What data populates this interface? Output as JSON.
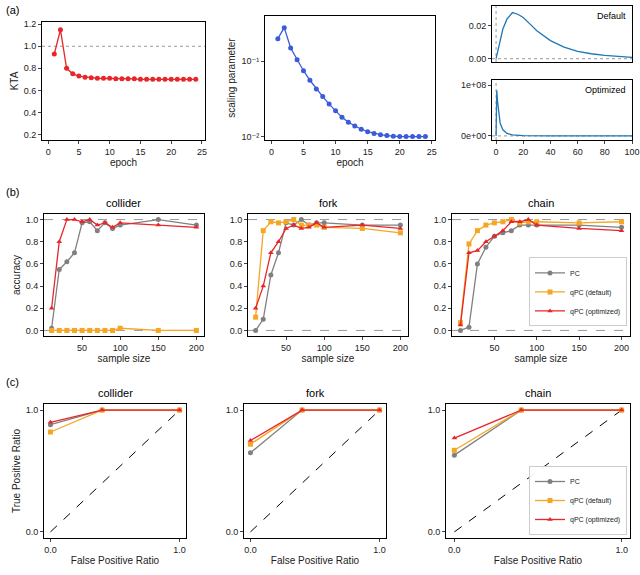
{
  "chart_data": [
    {
      "type": "line",
      "panel_label": "(a)",
      "x_label": "epoch",
      "y_label": "KTA",
      "x": [
        1,
        2,
        3,
        4,
        5,
        6,
        7,
        8,
        9,
        10,
        11,
        12,
        13,
        14,
        15,
        16,
        17,
        18,
        19,
        20,
        21,
        22,
        23,
        24
      ],
      "series": [
        {
          "color": "#e8262a",
          "marker": "circle",
          "values": [
            0.93,
            1.15,
            0.8,
            0.75,
            0.73,
            0.72,
            0.715,
            0.71,
            0.71,
            0.71,
            0.705,
            0.705,
            0.705,
            0.705,
            0.7,
            0.7,
            0.7,
            0.7,
            0.7,
            0.7,
            0.7,
            0.7,
            0.7,
            0.7
          ]
        }
      ],
      "xlim": [
        -1,
        25.5
      ],
      "xticks": [
        0,
        5,
        10,
        15,
        20,
        25
      ],
      "ylim": [
        0.15,
        1.22
      ],
      "yticks": [
        0.2,
        0.4,
        0.6,
        0.8,
        {
          "value": 1,
          "label": "1.0"
        },
        1.2
      ],
      "reference_lines": [
        {
          "axis": "y",
          "value": 1,
          "line_style": "dotted"
        }
      ],
      "grid": false
    },
    {
      "type": "line",
      "x_label": "epoch",
      "y_label": "scaling parameter",
      "log": "y",
      "x": [
        1,
        2,
        3,
        4,
        5,
        6,
        7,
        8,
        9,
        10,
        11,
        12,
        13,
        14,
        15,
        16,
        17,
        18,
        19,
        20,
        21,
        22,
        23,
        24
      ],
      "series": [
        {
          "color": "#3b5bdb",
          "marker": "circle",
          "values": [
            0.2,
            0.28,
            0.15,
            0.105,
            0.075,
            0.056,
            0.043,
            0.034,
            0.027,
            0.022,
            0.018,
            0.0155,
            0.0138,
            0.0125,
            0.0116,
            0.011,
            0.0106,
            0.0103,
            0.0101,
            0.01,
            0.01,
            0.01,
            0.01,
            0.01
          ]
        }
      ],
      "xlim": [
        -1,
        25.5
      ],
      "xticks": [
        0,
        5,
        10,
        15,
        20,
        25
      ],
      "ylim": [
        0.009,
        0.4
      ],
      "yticks": [
        {
          "value": 0.1,
          "label": "10⁻¹"
        },
        {
          "value": 0.01,
          "label": "10⁻²"
        }
      ],
      "grid": false
    },
    {
      "type": "line",
      "annotations": [
        "Default"
      ],
      "x": [
        0,
        2,
        5,
        8,
        12,
        16,
        20,
        25,
        30,
        40,
        50,
        60,
        70,
        80,
        90,
        100
      ],
      "series": [
        {
          "color": "#1f77b4",
          "marker": "none",
          "values": [
            0,
            0.008,
            0.018,
            0.024,
            0.028,
            0.027,
            0.025,
            0.021,
            0.017,
            0.011,
            0.007,
            0.0045,
            0.003,
            0.002,
            0.0013,
            0.0008
          ]
        }
      ],
      "xlim": [
        -3,
        100
      ],
      "ylim": [
        -0.002,
        0.032
      ],
      "yticks": [
        {
          "value": 0,
          "label": "0.00"
        },
        {
          "value": 0.02,
          "label": "0.02"
        }
      ],
      "reference_lines": [
        {
          "axis": "y",
          "value": 0,
          "line_style": "dotted"
        },
        {
          "axis": "x",
          "value": 0,
          "line_style": "dotted"
        }
      ],
      "grid": false
    },
    {
      "type": "line",
      "annotations": [
        "Optimized"
      ],
      "x": [
        0,
        0.5,
        1,
        2,
        3,
        5,
        8,
        12,
        20,
        40,
        100
      ],
      "series": [
        {
          "color": "#1f77b4",
          "marker": "none",
          "values": [
            0,
            90000000,
            70000000,
            40000000,
            25000000,
            12000000,
            5000000,
            2000000,
            500000,
            0,
            0
          ]
        }
      ],
      "xlim": [
        -3,
        100
      ],
      "xticks": [
        0,
        20,
        40,
        60,
        80,
        100
      ],
      "ylim": [
        -8000000,
        110000000
      ],
      "yticks": [
        {
          "value": 0,
          "label": "0e+00"
        },
        {
          "value": 100000000,
          "label": "1e+08"
        }
      ],
      "reference_lines": [
        {
          "axis": "y",
          "value": 0,
          "line_style": "dotted"
        },
        {
          "axis": "x",
          "value": 0,
          "line_style": "dotted"
        }
      ],
      "grid": false
    },
    {
      "type": "line",
      "panel_label": "(b)",
      "title": "collider",
      "x_label": "sample size",
      "y_label": "accuracy",
      "x": [
        10,
        20,
        30,
        40,
        50,
        60,
        70,
        80,
        90,
        100,
        150,
        200
      ],
      "series": [
        {
          "name": "PC",
          "color": "#808080",
          "marker": "circle",
          "values": [
            0.02,
            0.55,
            0.62,
            0.7,
            0.97,
            0.98,
            0.9,
            0.97,
            0.92,
            0.95,
            1.0,
            0.95
          ]
        },
        {
          "name": "qPC (default)",
          "color": "#f5a623",
          "marker": "square",
          "values": [
            0,
            0,
            0,
            0,
            0,
            0,
            0,
            0,
            0,
            0.02,
            0,
            0
          ]
        },
        {
          "name": "qPC (optimized)",
          "color": "#e8262a",
          "marker": "triangle-up",
          "values": [
            0.2,
            0.8,
            1.0,
            1.0,
            0.98,
            1.0,
            0.95,
            0.97,
            0.93,
            0.97,
            0.95,
            0.93
          ]
        }
      ],
      "xlim": [
        0,
        210
      ],
      "xticks": [
        50,
        100,
        150,
        200
      ],
      "ylim": [
        -0.05,
        1.05
      ],
      "yticks": [
        {
          "value": 0,
          "label": "0.0"
        },
        0.2,
        0.4,
        0.6,
        0.8,
        {
          "value": 1,
          "label": "1.0"
        }
      ],
      "reference_lines": [
        {
          "axis": "y",
          "value": 0,
          "line_style": "dashed"
        },
        {
          "axis": "y",
          "value": 1,
          "line_style": "dashed"
        }
      ],
      "grid": false
    },
    {
      "type": "line",
      "title": "fork",
      "x_label": "sample size",
      "x": [
        10,
        20,
        30,
        40,
        50,
        60,
        70,
        80,
        90,
        100,
        150,
        200
      ],
      "series": [
        {
          "name": "PC",
          "color": "#808080",
          "marker": "circle",
          "values": [
            0,
            0.1,
            0.5,
            0.7,
            0.97,
            0.95,
            1.0,
            0.95,
            0.97,
            0.97,
            0.95,
            0.95
          ]
        },
        {
          "name": "qPC (default)",
          "color": "#f5a623",
          "marker": "square",
          "values": [
            0.12,
            0.9,
            0.98,
            0.97,
            0.98,
            1.0,
            0.95,
            0.95,
            0.95,
            0.93,
            0.92,
            0.88
          ]
        },
        {
          "name": "qPC (optimized)",
          "color": "#e8262a",
          "marker": "triangle-up",
          "values": [
            0.2,
            0.4,
            0.7,
            0.8,
            0.92,
            0.95,
            0.92,
            0.93,
            0.97,
            0.93,
            0.95,
            0.92
          ]
        }
      ],
      "xlim": [
        0,
        210
      ],
      "xticks": [
        50,
        100,
        150,
        200
      ],
      "ylim": [
        -0.05,
        1.05
      ],
      "yticks": [
        {
          "value": 0,
          "label": "0.0"
        },
        0.2,
        0.4,
        0.6,
        0.8,
        {
          "value": 1,
          "label": "1.0"
        }
      ],
      "reference_lines": [
        {
          "axis": "y",
          "value": 0,
          "line_style": "dashed"
        },
        {
          "axis": "y",
          "value": 1,
          "line_style": "dashed"
        }
      ],
      "grid": false
    },
    {
      "type": "line",
      "title": "chain",
      "x_label": "sample size",
      "legend": "lower right",
      "x": [
        10,
        20,
        30,
        40,
        50,
        60,
        70,
        80,
        90,
        100,
        150,
        200
      ],
      "series": [
        {
          "name": "PC",
          "color": "#808080",
          "marker": "circle",
          "values": [
            0,
            0.03,
            0.6,
            0.75,
            0.85,
            0.88,
            0.9,
            0.95,
            0.95,
            0.95,
            0.95,
            0.93
          ]
        },
        {
          "name": "qPC (default)",
          "color": "#f5a623",
          "marker": "square",
          "values": [
            0.07,
            0.78,
            0.9,
            0.95,
            0.97,
            0.98,
            1.0,
            0.97,
            0.98,
            0.98,
            0.97,
            0.98
          ]
        },
        {
          "name": "qPC (optimized)",
          "color": "#e8262a",
          "marker": "triangle-up",
          "values": [
            0.05,
            0.7,
            0.72,
            0.8,
            0.85,
            0.9,
            0.98,
            0.98,
            1.0,
            0.95,
            0.92,
            0.9
          ]
        }
      ],
      "xlim": [
        0,
        210
      ],
      "xticks": [
        50,
        100,
        150,
        200
      ],
      "ylim": [
        -0.05,
        1.05
      ],
      "yticks": [
        {
          "value": 0,
          "label": "0.0"
        },
        0.2,
        0.4,
        0.6,
        0.8,
        {
          "value": 1,
          "label": "1.0"
        }
      ],
      "reference_lines": [
        {
          "axis": "y",
          "value": 0,
          "line_style": "dashed"
        },
        {
          "axis": "y",
          "value": 1,
          "line_style": "dashed"
        }
      ],
      "grid": false
    },
    {
      "type": "line",
      "panel_label": "(c)",
      "title": "collider",
      "x_label": "False Positive Ratio",
      "y_label": "True Positive Ratio",
      "x": [
        0,
        0.4,
        1
      ],
      "series": [
        {
          "name": "PC",
          "color": "#808080",
          "marker": "circle",
          "values": [
            0.88,
            1,
            1
          ]
        },
        {
          "name": "qPC (default)",
          "color": "#f5a623",
          "marker": "square",
          "values": [
            0.82,
            1,
            1
          ]
        },
        {
          "name": "qPC (optimized)",
          "color": "#e8262a",
          "marker": "triangle-up",
          "values": [
            0.9,
            1,
            1
          ]
        }
      ],
      "xlim": [
        -0.05,
        1.05
      ],
      "xticks": [
        {
          "value": 0,
          "label": "0.0"
        },
        {
          "value": 1,
          "label": "1.0"
        }
      ],
      "ylim": [
        -0.05,
        1.05
      ],
      "yticks": [
        {
          "value": 0,
          "label": "0.0"
        },
        {
          "value": 1,
          "label": "1.0"
        }
      ],
      "reference_lines": [
        {
          "x": [
            0,
            1
          ],
          "y": [
            0,
            1
          ],
          "line_style": "dashed"
        }
      ],
      "grid": false
    },
    {
      "type": "line",
      "title": "fork",
      "x_label": "False Positive Ratio",
      "x": [
        0,
        0.4,
        1
      ],
      "series": [
        {
          "name": "PC",
          "color": "#808080",
          "marker": "circle",
          "values": [
            0.65,
            1,
            1
          ]
        },
        {
          "name": "qPC (default)",
          "color": "#f5a623",
          "marker": "square",
          "values": [
            0.72,
            1,
            1
          ]
        },
        {
          "name": "qPC (optimized)",
          "color": "#e8262a",
          "marker": "triangle-up",
          "values": [
            0.75,
            1,
            1
          ]
        }
      ],
      "xlim": [
        -0.05,
        1.05
      ],
      "xticks": [
        {
          "value": 0,
          "label": "0.0"
        },
        {
          "value": 1,
          "label": "1.0"
        }
      ],
      "ylim": [
        -0.05,
        1.05
      ],
      "yticks": [
        {
          "value": 0,
          "label": "0.0"
        },
        {
          "value": 1,
          "label": "1.0"
        }
      ],
      "reference_lines": [
        {
          "x": [
            0,
            1
          ],
          "y": [
            0,
            1
          ],
          "line_style": "dashed"
        }
      ],
      "grid": false
    },
    {
      "type": "line",
      "title": "chain",
      "x_label": "False Positive Ratio",
      "legend": "lower right",
      "x": [
        0,
        0.4,
        1
      ],
      "series": [
        {
          "name": "PC",
          "color": "#808080",
          "marker": "circle",
          "values": [
            0.63,
            1,
            1
          ]
        },
        {
          "name": "qPC (default)",
          "color": "#f5a623",
          "marker": "square",
          "values": [
            0.67,
            1,
            1
          ]
        },
        {
          "name": "qPC (optimized)",
          "color": "#e8262a",
          "marker": "triangle-up",
          "values": [
            0.77,
            1,
            1
          ]
        }
      ],
      "xlim": [
        -0.05,
        1.05
      ],
      "xticks": [
        {
          "value": 0,
          "label": "0.0"
        },
        {
          "value": 1,
          "label": "1.0"
        }
      ],
      "ylim": [
        -0.05,
        1.05
      ],
      "yticks": [
        {
          "value": 0,
          "label": "0.0"
        },
        {
          "value": 1,
          "label": "1.0"
        }
      ],
      "reference_lines": [
        {
          "x": [
            0,
            1
          ],
          "y": [
            0,
            1
          ],
          "line_style": "dashed"
        }
      ],
      "grid": false
    }
  ]
}
